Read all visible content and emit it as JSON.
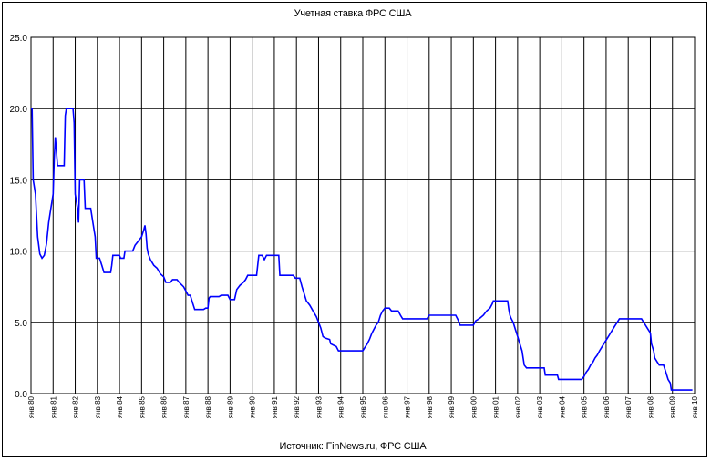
{
  "chart_data": {
    "type": "line",
    "title": "Учетная ставка ФРС США",
    "source": "Источник: FinNews.ru, ФРС США",
    "xlabel": "",
    "ylabel": "",
    "ylim": [
      0,
      25
    ],
    "y_ticks": [
      "0.0",
      "5.0",
      "10.0",
      "15.0",
      "20.0",
      "25.0"
    ],
    "x_ticks": [
      "янв 80",
      "янв 81",
      "янв 82",
      "янв 83",
      "янв 84",
      "янв 85",
      "янв 86",
      "янв 87",
      "янв 88",
      "янв 89",
      "янв 90",
      "янв 91",
      "янв 92",
      "янв 93",
      "янв 94",
      "янв 95",
      "янв 96",
      "янв 97",
      "янв 98",
      "янв 99",
      "янв 00",
      "янв 01",
      "янв 02",
      "янв 03",
      "янв 04",
      "янв 05",
      "янв 06",
      "янв 07",
      "янв 08",
      "янв 09",
      "янв 10"
    ],
    "grid": true,
    "color": "#0000ff",
    "series": [
      {
        "values": [
          [
            1980.0,
            20.0
          ],
          [
            1980.05,
            20.0
          ],
          [
            1980.1,
            15.0
          ],
          [
            1980.2,
            14.0
          ],
          [
            1980.3,
            11.0
          ],
          [
            1980.4,
            9.8
          ],
          [
            1980.5,
            9.5
          ],
          [
            1980.6,
            9.7
          ],
          [
            1980.7,
            10.5
          ],
          [
            1980.8,
            12.0
          ],
          [
            1980.9,
            13.0
          ],
          [
            1981.0,
            14.0
          ],
          [
            1981.05,
            16.5
          ],
          [
            1981.1,
            18.0
          ],
          [
            1981.15,
            17.0
          ],
          [
            1981.2,
            16.0
          ],
          [
            1981.5,
            16.0
          ],
          [
            1981.55,
            19.5
          ],
          [
            1981.6,
            20.0
          ],
          [
            1981.9,
            20.0
          ],
          [
            1981.95,
            19.0
          ],
          [
            1982.0,
            14.0
          ],
          [
            1982.1,
            13.0
          ],
          [
            1982.15,
            12.0
          ],
          [
            1982.2,
            15.0
          ],
          [
            1982.4,
            15.0
          ],
          [
            1982.45,
            13.0
          ],
          [
            1982.7,
            13.0
          ],
          [
            1982.8,
            12.0
          ],
          [
            1982.9,
            11.0
          ],
          [
            1982.95,
            9.5
          ],
          [
            1983.1,
            9.5
          ],
          [
            1983.2,
            9.0
          ],
          [
            1983.3,
            8.5
          ],
          [
            1983.6,
            8.5
          ],
          [
            1983.65,
            9.0
          ],
          [
            1983.7,
            9.7
          ],
          [
            1984.0,
            9.7
          ],
          [
            1984.05,
            9.5
          ],
          [
            1984.2,
            9.5
          ],
          [
            1984.25,
            10.0
          ],
          [
            1984.6,
            10.0
          ],
          [
            1984.7,
            10.4
          ],
          [
            1984.8,
            10.6
          ],
          [
            1985.0,
            11.0
          ],
          [
            1985.1,
            11.5
          ],
          [
            1985.15,
            11.8
          ],
          [
            1985.2,
            11.2
          ],
          [
            1985.25,
            10.2
          ],
          [
            1985.3,
            9.8
          ],
          [
            1985.4,
            9.4
          ],
          [
            1985.55,
            9.0
          ],
          [
            1985.7,
            8.8
          ],
          [
            1985.85,
            8.4
          ],
          [
            1986.0,
            8.2
          ],
          [
            1986.1,
            7.8
          ],
          [
            1986.3,
            7.8
          ],
          [
            1986.4,
            8.0
          ],
          [
            1986.6,
            8.0
          ],
          [
            1986.7,
            7.8
          ],
          [
            1986.9,
            7.5
          ],
          [
            1987.0,
            7.2
          ],
          [
            1987.1,
            6.9
          ],
          [
            1987.2,
            6.9
          ],
          [
            1987.3,
            6.4
          ],
          [
            1987.4,
            5.9
          ],
          [
            1987.8,
            5.9
          ],
          [
            1987.9,
            6.0
          ],
          [
            1988.0,
            6.0
          ],
          [
            1988.05,
            6.7
          ],
          [
            1988.1,
            6.8
          ],
          [
            1988.5,
            6.8
          ],
          [
            1988.6,
            6.9
          ],
          [
            1988.9,
            6.9
          ],
          [
            1989.0,
            6.6
          ],
          [
            1989.2,
            6.6
          ],
          [
            1989.3,
            7.3
          ],
          [
            1989.45,
            7.6
          ],
          [
            1989.6,
            7.8
          ],
          [
            1989.7,
            8.0
          ],
          [
            1989.8,
            8.3
          ],
          [
            1990.2,
            8.3
          ],
          [
            1990.25,
            9.0
          ],
          [
            1990.3,
            9.7
          ],
          [
            1990.45,
            9.7
          ],
          [
            1990.55,
            9.4
          ],
          [
            1990.65,
            9.7
          ],
          [
            1991.2,
            9.7
          ],
          [
            1991.25,
            8.3
          ],
          [
            1991.85,
            8.3
          ],
          [
            1991.95,
            8.1
          ],
          [
            1992.15,
            8.1
          ],
          [
            1992.25,
            7.5
          ],
          [
            1992.35,
            7.0
          ],
          [
            1992.45,
            6.5
          ],
          [
            1992.6,
            6.2
          ],
          [
            1992.75,
            5.8
          ],
          [
            1992.9,
            5.4
          ],
          [
            1993.0,
            5.0
          ],
          [
            1993.1,
            4.6
          ],
          [
            1993.2,
            4.0
          ],
          [
            1993.3,
            3.9
          ],
          [
            1993.5,
            3.8
          ],
          [
            1993.55,
            3.5
          ],
          [
            1993.8,
            3.3
          ],
          [
            1993.9,
            3.0
          ],
          [
            1995.0,
            3.0
          ],
          [
            1995.1,
            3.25
          ],
          [
            1995.2,
            3.5
          ],
          [
            1995.3,
            3.8
          ],
          [
            1995.4,
            4.2
          ],
          [
            1995.5,
            4.5
          ],
          [
            1995.6,
            4.8
          ],
          [
            1995.7,
            5.0
          ],
          [
            1995.8,
            5.5
          ],
          [
            1995.9,
            5.8
          ],
          [
            1996.0,
            6.0
          ],
          [
            1996.2,
            6.0
          ],
          [
            1996.3,
            5.8
          ],
          [
            1996.6,
            5.8
          ],
          [
            1996.7,
            5.5
          ],
          [
            1996.8,
            5.25
          ],
          [
            1997.9,
            5.25
          ],
          [
            1998.0,
            5.5
          ],
          [
            1999.2,
            5.5
          ],
          [
            1999.3,
            5.2
          ],
          [
            1999.4,
            4.8
          ],
          [
            2000.0,
            4.8
          ],
          [
            2000.1,
            5.1
          ],
          [
            2000.2,
            5.2
          ],
          [
            2000.3,
            5.3
          ],
          [
            2000.45,
            5.5
          ],
          [
            2000.6,
            5.8
          ],
          [
            2000.75,
            6.0
          ],
          [
            2000.85,
            6.3
          ],
          [
            2000.9,
            6.5
          ],
          [
            2001.55,
            6.5
          ],
          [
            2001.6,
            5.9
          ],
          [
            2001.65,
            5.5
          ],
          [
            2001.7,
            5.3
          ],
          [
            2001.8,
            5.0
          ],
          [
            2001.9,
            4.5
          ],
          [
            2002.0,
            4.0
          ],
          [
            2002.1,
            3.5
          ],
          [
            2002.2,
            3.0
          ],
          [
            2002.25,
            2.5
          ],
          [
            2002.3,
            2.0
          ],
          [
            2002.4,
            1.8
          ],
          [
            2003.2,
            1.8
          ],
          [
            2003.25,
            1.3
          ],
          [
            2003.8,
            1.3
          ],
          [
            2003.85,
            1.0
          ],
          [
            2004.9,
            1.0
          ],
          [
            2005.0,
            1.2
          ],
          [
            2005.1,
            1.5
          ],
          [
            2005.2,
            1.7
          ],
          [
            2005.3,
            2.0
          ],
          [
            2005.4,
            2.2
          ],
          [
            2005.5,
            2.5
          ],
          [
            2005.6,
            2.7
          ],
          [
            2005.7,
            3.0
          ],
          [
            2005.8,
            3.25
          ],
          [
            2005.9,
            3.5
          ],
          [
            2006.0,
            3.75
          ],
          [
            2006.1,
            4.0
          ],
          [
            2006.2,
            4.25
          ],
          [
            2006.3,
            4.5
          ],
          [
            2006.4,
            4.75
          ],
          [
            2006.5,
            5.0
          ],
          [
            2006.6,
            5.25
          ],
          [
            2007.6,
            5.25
          ],
          [
            2007.7,
            5.0
          ],
          [
            2007.8,
            4.75
          ],
          [
            2007.9,
            4.5
          ],
          [
            2008.0,
            4.25
          ],
          [
            2008.05,
            3.5
          ],
          [
            2008.15,
            3.0
          ],
          [
            2008.2,
            2.5
          ],
          [
            2008.3,
            2.25
          ],
          [
            2008.4,
            2.0
          ],
          [
            2008.6,
            2.0
          ],
          [
            2008.7,
            1.5
          ],
          [
            2008.8,
            1.0
          ],
          [
            2008.9,
            0.75
          ],
          [
            2008.95,
            0.25
          ],
          [
            2009.5,
            0.25
          ],
          [
            2009.9,
            0.25
          ]
        ]
      }
    ]
  }
}
